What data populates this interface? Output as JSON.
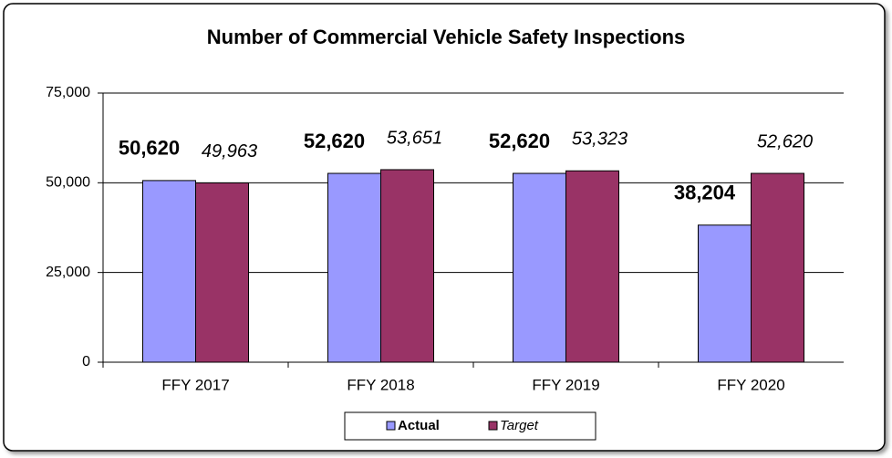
{
  "chart_data": {
    "type": "bar",
    "title": "Number of Commercial Vehicle Safety Inspections",
    "categories": [
      "FFY 2017",
      "FFY 2018",
      "FFY 2019",
      "FFY 2020"
    ],
    "series": [
      {
        "name": "Actual",
        "color": "#9999ff",
        "values": [
          50620,
          52620,
          52620,
          38204
        ],
        "value_labels": [
          "50,620",
          "52,620",
          "52,620",
          "38,204"
        ]
      },
      {
        "name": "Target",
        "color": "#993366",
        "values": [
          49963,
          53651,
          53323,
          52620
        ],
        "value_labels": [
          "49,963",
          "53,651",
          "53,323",
          "52,620"
        ]
      }
    ],
    "ylim": [
      0,
      75000
    ],
    "yticks": [
      0,
      {
        "value": 25000,
        "label": "25,000"
      },
      {
        "value": 50000,
        "label": "50,000"
      },
      {
        "value": 75000,
        "label": "75,000"
      }
    ],
    "grid": true,
    "legend": "bottom"
  }
}
